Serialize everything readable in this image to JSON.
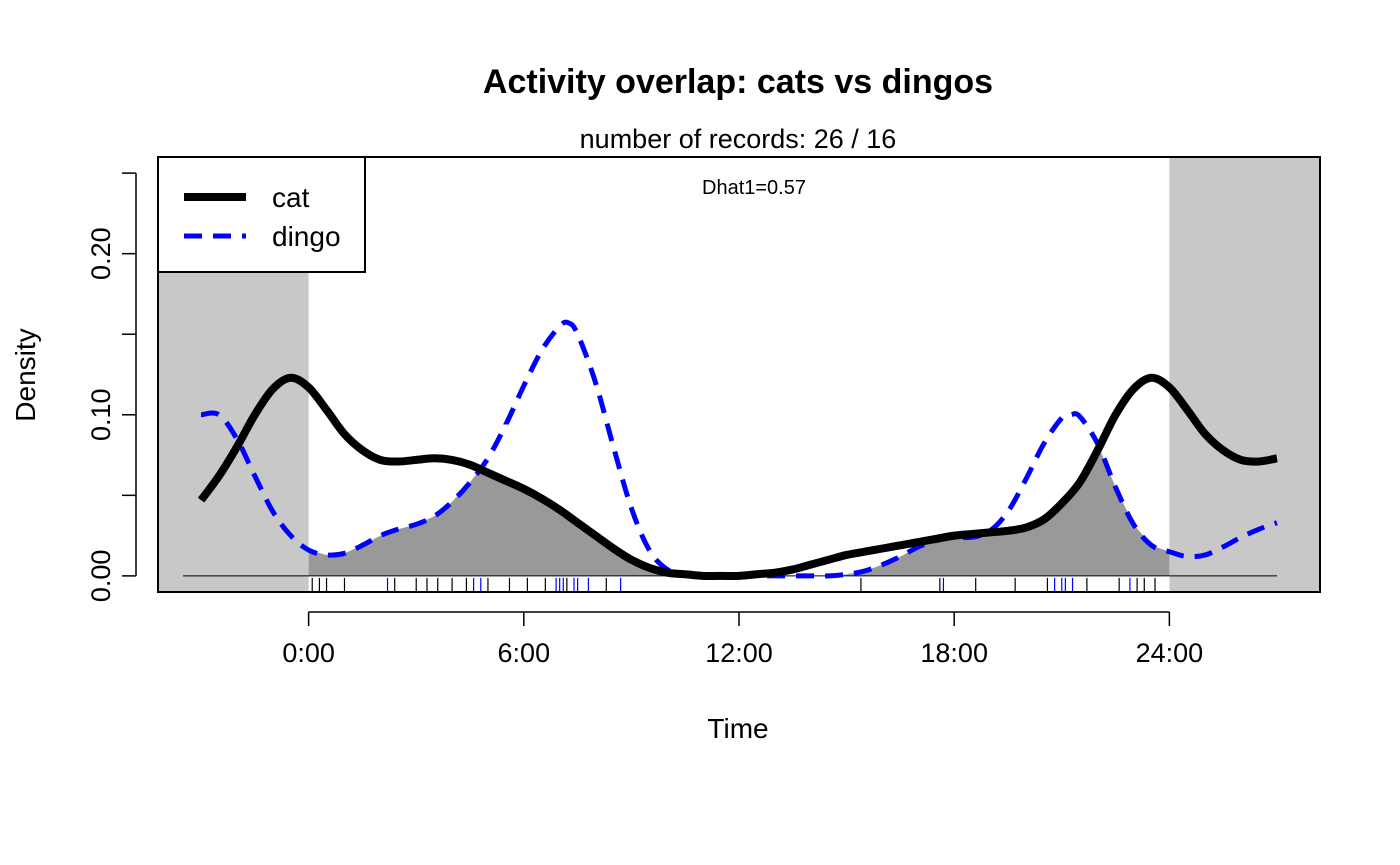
{
  "chart_data": {
    "type": "line",
    "title": "Activity overlap: cats vs dingos",
    "subtitle": "number of records: 26 / 16",
    "annotation": "Dhat1=0.57",
    "xlabel": "Time",
    "ylabel": "Density",
    "xlim": [
      -4.2,
      28.2
    ],
    "ylim": [
      -0.01,
      0.26
    ],
    "grid": false,
    "legend_position": "top-left",
    "x_ticks": [
      {
        "value": 0,
        "label": "0:00"
      },
      {
        "value": 6,
        "label": "6:00"
      },
      {
        "value": 12,
        "label": "12:00"
      },
      {
        "value": 18,
        "label": "18:00"
      },
      {
        "value": 24,
        "label": "24:00"
      }
    ],
    "y_ticks": [
      {
        "value": 0.0,
        "label": "0.00"
      },
      {
        "value": 0.05,
        "label": ""
      },
      {
        "value": 0.1,
        "label": "0.10"
      },
      {
        "value": 0.15,
        "label": ""
      },
      {
        "value": 0.2,
        "label": "0.20"
      },
      {
        "value": 0.25,
        "label": ""
      }
    ],
    "shaded_ranges": [
      [
        -4.2,
        0
      ],
      [
        24,
        28.2
      ]
    ],
    "colors": {
      "cat": "#000000",
      "dingo": "#0000ff",
      "overlap_fill": "#999999",
      "outside_day_fill": "#c8c8c8"
    },
    "series": [
      {
        "name": "cat",
        "style": "solid",
        "x": [
          -3.0,
          -2.5,
          -2.0,
          -1.5,
          -1.0,
          -0.5,
          0.0,
          0.5,
          1.0,
          1.5,
          2.0,
          2.5,
          3.0,
          3.5,
          4.0,
          4.5,
          5.0,
          5.5,
          6.0,
          6.5,
          7.0,
          7.5,
          8.0,
          8.5,
          9.0,
          9.5,
          10.0,
          10.5,
          11.0,
          11.5,
          12.0,
          12.5,
          13.0,
          13.5,
          14.0,
          14.5,
          15.0,
          15.5,
          16.0,
          16.5,
          17.0,
          17.5,
          18.0,
          18.5,
          19.0,
          19.5,
          20.0,
          20.5,
          21.0,
          21.5,
          22.0,
          22.5,
          23.0,
          23.5,
          24.0,
          24.5,
          25.0,
          25.5,
          26.0,
          26.5,
          27.0
        ],
        "y": [
          0.047,
          0.062,
          0.08,
          0.1,
          0.116,
          0.123,
          0.117,
          0.103,
          0.088,
          0.078,
          0.072,
          0.071,
          0.072,
          0.073,
          0.072,
          0.069,
          0.064,
          0.059,
          0.054,
          0.048,
          0.041,
          0.033,
          0.025,
          0.017,
          0.01,
          0.005,
          0.002,
          0.001,
          0.0,
          0.0,
          0.0,
          0.001,
          0.002,
          0.004,
          0.007,
          0.01,
          0.013,
          0.015,
          0.017,
          0.019,
          0.021,
          0.023,
          0.025,
          0.026,
          0.027,
          0.028,
          0.03,
          0.035,
          0.045,
          0.058,
          0.078,
          0.1,
          0.116,
          0.123,
          0.117,
          0.103,
          0.088,
          0.078,
          0.072,
          0.071,
          0.073
        ]
      },
      {
        "name": "dingo",
        "style": "dashed",
        "x": [
          -3.0,
          -2.5,
          -2.0,
          -1.5,
          -1.0,
          -0.5,
          0.0,
          0.5,
          1.0,
          1.5,
          2.0,
          2.5,
          3.0,
          3.5,
          4.0,
          4.5,
          5.0,
          5.5,
          6.0,
          6.5,
          7.0,
          7.25,
          7.5,
          8.0,
          8.5,
          9.0,
          9.5,
          10.0,
          10.5,
          11.0,
          11.5,
          12.0,
          12.5,
          13.0,
          13.5,
          14.0,
          14.5,
          15.0,
          15.5,
          16.0,
          16.5,
          17.0,
          17.5,
          18.0,
          18.5,
          19.0,
          19.5,
          20.0,
          20.5,
          21.0,
          21.25,
          21.5,
          22.0,
          22.5,
          23.0,
          23.5,
          24.0,
          24.5,
          25.0,
          25.5,
          26.0,
          26.5,
          27.0
        ],
        "y": [
          0.1,
          0.1,
          0.085,
          0.062,
          0.04,
          0.025,
          0.016,
          0.013,
          0.014,
          0.019,
          0.025,
          0.029,
          0.032,
          0.037,
          0.046,
          0.058,
          0.073,
          0.094,
          0.118,
          0.14,
          0.155,
          0.157,
          0.15,
          0.12,
          0.08,
          0.042,
          0.016,
          0.004,
          0.001,
          0.0,
          0.0,
          0.0,
          0.0,
          0.0,
          0.0,
          0.0,
          0.0,
          0.001,
          0.003,
          0.007,
          0.012,
          0.018,
          0.022,
          0.024,
          0.024,
          0.028,
          0.04,
          0.06,
          0.082,
          0.098,
          0.1,
          0.099,
          0.082,
          0.055,
          0.032,
          0.019,
          0.015,
          0.012,
          0.013,
          0.018,
          0.024,
          0.029,
          0.033
        ]
      }
    ],
    "rug": {
      "cat": [
        0.1,
        0.3,
        0.5,
        1.0,
        2.4,
        3.0,
        3.3,
        3.6,
        4.0,
        4.4,
        5.0,
        5.6,
        6.1,
        6.6,
        7.2,
        8.3,
        15.4,
        17.6,
        18.6,
        19.7,
        20.6,
        21.7,
        22.6,
        23.1,
        23.3,
        23.6
      ],
      "dingo": [
        2.2,
        4.6,
        4.8,
        6.9,
        7.0,
        7.1,
        7.4,
        7.5,
        7.8,
        8.7,
        17.7,
        20.8,
        21.0,
        21.1,
        21.3,
        22.9
      ]
    }
  }
}
